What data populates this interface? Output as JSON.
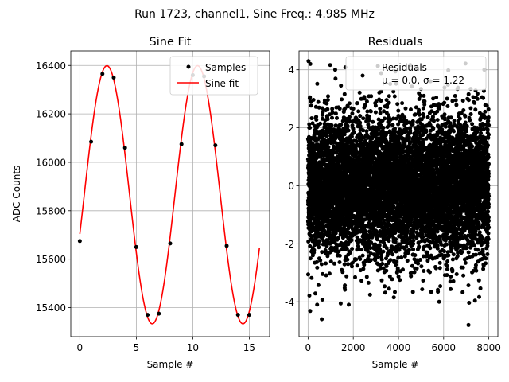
{
  "figure_title": "Run 1723, channel1, Sine Freq.: 4.985 MHz",
  "chart_data": [
    {
      "type": "line",
      "title": "Sine Fit",
      "xlabel": "Sample #",
      "ylabel": "ADC Counts",
      "xlim": [
        -0.8,
        16.8
      ],
      "ylim": [
        15280,
        16460
      ],
      "xticks": [
        0,
        5,
        10,
        15
      ],
      "yticks": [
        15400,
        15600,
        15800,
        16000,
        16200,
        16400
      ],
      "grid": true,
      "legend_position": "upper right",
      "series": [
        {
          "name": "Samples",
          "style": "scatter",
          "color": "#000000",
          "x": [
            0,
            1,
            2,
            3,
            4,
            5,
            6,
            7,
            8,
            9,
            10,
            11,
            12,
            13,
            14,
            15
          ],
          "y": [
            15675,
            16085,
            16365,
            16350,
            16060,
            15650,
            15370,
            15375,
            15665,
            16075,
            16360,
            16355,
            16070,
            15655,
            15370,
            15370
          ]
        },
        {
          "name": "Sine fit",
          "style": "line",
          "color": "#ff0000",
          "function": "sine",
          "offset": 15866,
          "amplitude": 533,
          "period": 8.025,
          "peak_x": 2.4,
          "x_range": [
            0,
            15.9
          ]
        }
      ]
    },
    {
      "type": "scatter",
      "title": "Residuals",
      "xlabel": "Sample #",
      "ylabel": "",
      "xlim": [
        -400,
        8400
      ],
      "ylim": [
        -5.2,
        4.65
      ],
      "xticks": [
        0,
        2000,
        4000,
        6000,
        8000
      ],
      "yticks": [
        -4,
        -2,
        0,
        2,
        4
      ],
      "grid": true,
      "legend_position": "upper right",
      "legend": {
        "name": "Residuals",
        "stats_prefix": "μ = ",
        "mean": "0.0",
        "stats_mid": ", σ = ",
        "sigma": "1.22"
      },
      "series": [
        {
          "name": "Residuals",
          "color": "#000000",
          "count": 8000,
          "mean": 0.0,
          "sigma": 1.22,
          "x_range": [
            0,
            7999
          ],
          "notable_points": [
            {
              "x": 100,
              "y": 4.2
            },
            {
              "x": 1200,
              "y": 4.0
            },
            {
              "x": 7100,
              "y": -4.8
            },
            {
              "x": 400,
              "y": -4.1
            },
            {
              "x": 1800,
              "y": -4.1
            },
            {
              "x": 5800,
              "y": -4.0
            },
            {
              "x": 7800,
              "y": 4.0
            }
          ]
        }
      ]
    }
  ]
}
